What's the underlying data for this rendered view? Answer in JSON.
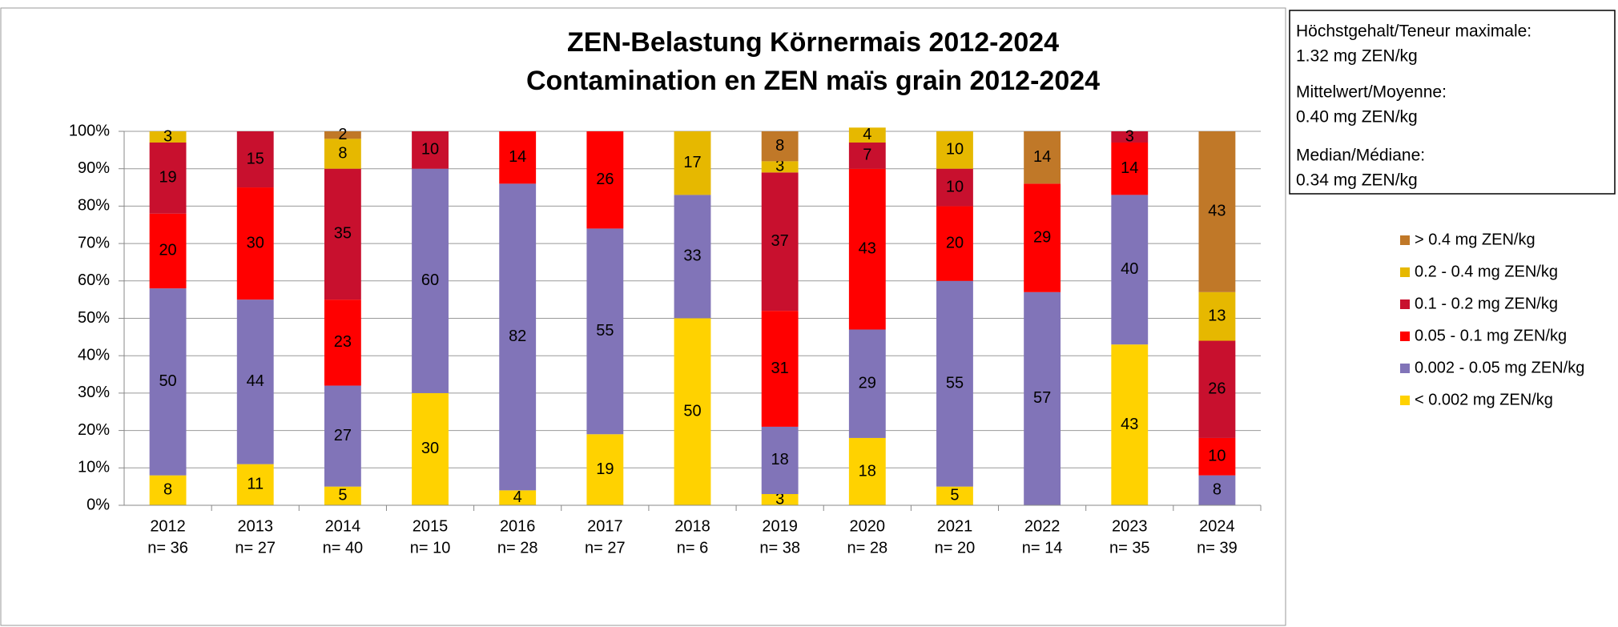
{
  "chart_data": {
    "type": "stacked_bar_percent",
    "title": [
      "ZEN-Belastung Körnermais 2012-2024",
      "Contamination en ZEN maïs grain 2012-2024"
    ],
    "categories": [
      "2012",
      "2013",
      "2014",
      "2015",
      "2016",
      "2017",
      "2018",
      "2019",
      "2020",
      "2021",
      "2022",
      "2023",
      "2024"
    ],
    "category_sublabels": [
      "n= 36",
      "n= 27",
      "n= 40",
      "n= 10",
      "n= 28",
      "n= 27",
      "n= 6",
      "n= 38",
      "n= 28",
      "n= 20",
      "n= 14",
      "n= 35",
      "n= 39"
    ],
    "series": [
      {
        "name": "< 0.002 mg ZEN/kg",
        "color": "#FFD200",
        "values": [
          8,
          11,
          5,
          30,
          4,
          19,
          50,
          3,
          18,
          5,
          0,
          43,
          0
        ]
      },
      {
        "name": "0.002 - 0.05 mg ZEN/kg",
        "color": "#8174B8",
        "values": [
          50,
          44,
          27,
          60,
          82,
          55,
          33,
          18,
          29,
          55,
          57,
          40,
          8
        ]
      },
      {
        "name": "0.05 - 0.1 mg ZEN/kg",
        "color": "#FF0000",
        "values": [
          20,
          30,
          23,
          0,
          14,
          26,
          0,
          31,
          43,
          20,
          29,
          14,
          10
        ]
      },
      {
        "name": "0.1 - 0.2 mg ZEN/kg",
        "color": "#C8102E",
        "values": [
          19,
          15,
          35,
          10,
          0,
          0,
          0,
          37,
          7,
          10,
          0,
          3,
          26
        ]
      },
      {
        "name": "0.2 - 0.4 mg ZEN/kg",
        "color": "#E6B800",
        "values": [
          3,
          0,
          8,
          0,
          0,
          0,
          17,
          3,
          4,
          10,
          0,
          0,
          13
        ]
      },
      {
        "name": "> 0.4 mg ZEN/kg",
        "color": "#C07828",
        "values": [
          0,
          0,
          2,
          0,
          0,
          0,
          0,
          8,
          0,
          0,
          14,
          0,
          43
        ]
      }
    ],
    "ylim": [
      0,
      100
    ],
    "yticks": [
      {
        "value": 0,
        "label": "0%"
      },
      {
        "value": 10,
        "label": "10%"
      },
      {
        "value": 20,
        "label": "20%"
      },
      {
        "value": 30,
        "label": "30%"
      },
      {
        "value": 40,
        "label": "40%"
      },
      {
        "value": 50,
        "label": "50%"
      },
      {
        "value": 60,
        "label": "60%"
      },
      {
        "value": 70,
        "label": "70%"
      },
      {
        "value": 80,
        "label": "80%"
      },
      {
        "value": 90,
        "label": "90%"
      },
      {
        "value": 100,
        "label": "100%"
      }
    ],
    "grid": true,
    "info_box": [
      "Höchstgehalt/Teneur maximale:",
      "1.32 mg ZEN/kg",
      "Mittelwert/Moyenne:",
      "0.40 mg ZEN/kg",
      "Median/Médiane:",
      "0.34 mg ZEN/kg"
    ]
  }
}
